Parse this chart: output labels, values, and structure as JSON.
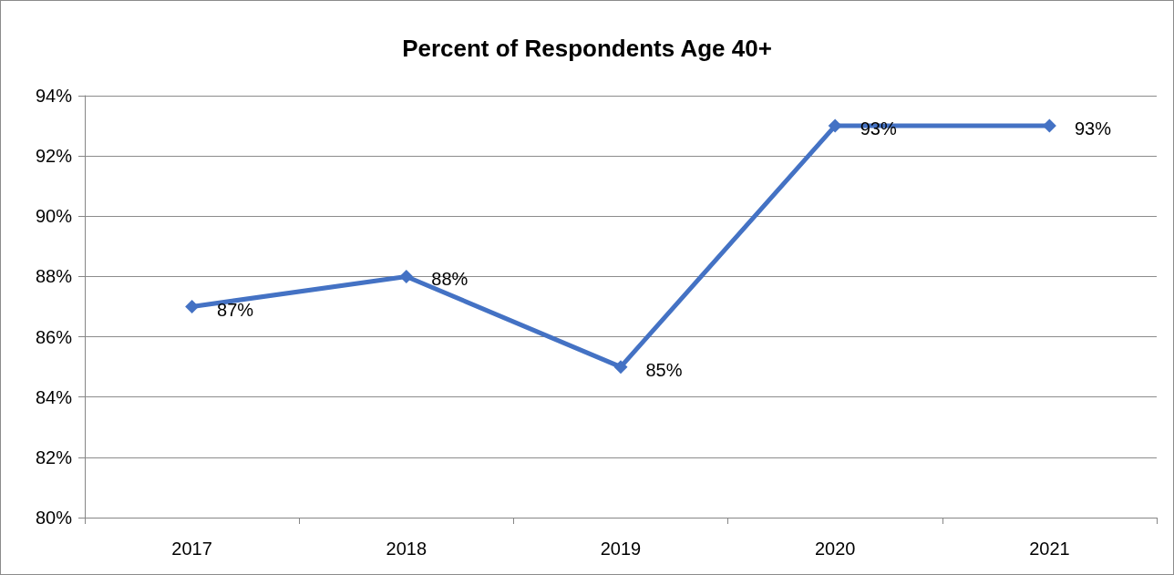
{
  "chart_data": {
    "type": "line",
    "title": "Percent of Respondents Age 40+",
    "categories": [
      "2017",
      "2018",
      "2019",
      "2020",
      "2021"
    ],
    "values": [
      87,
      88,
      85,
      93,
      93
    ],
    "color": "#4472c4",
    "value_labels": [
      "87%",
      "88%",
      "85%",
      "93%",
      "93%"
    ],
    "ylim": [
      80,
      94
    ],
    "yticks": [
      {
        "value": 80,
        "label": "80%"
      },
      {
        "value": 82,
        "label": "82%"
      },
      {
        "value": 84,
        "label": "84%"
      },
      {
        "value": 86,
        "label": "86%"
      },
      {
        "value": 88,
        "label": "88%"
      },
      {
        "value": 90,
        "label": "90%"
      },
      {
        "value": 92,
        "label": "92%"
      },
      {
        "value": 94,
        "label": "94%"
      }
    ],
    "grid": "y",
    "marker": "diamond",
    "line_style": "solid"
  }
}
